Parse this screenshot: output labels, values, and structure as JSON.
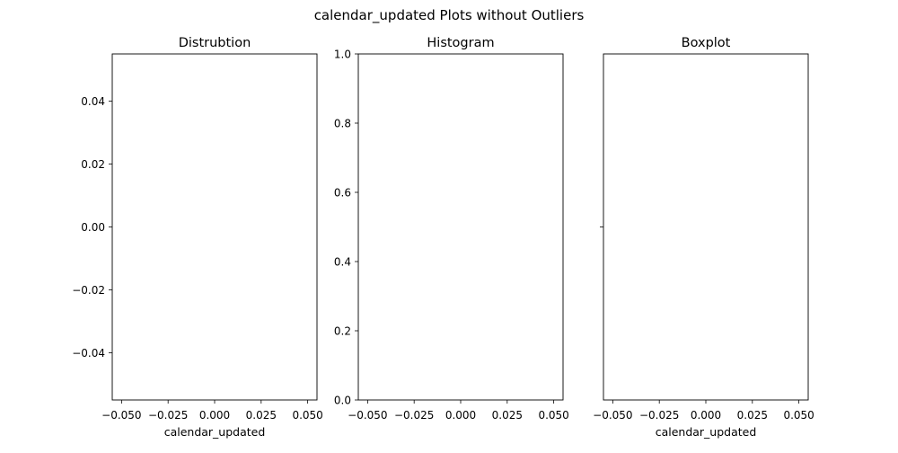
{
  "suptitle": "calendar_updated Plots without Outliers",
  "chart_data": [
    {
      "type": "line",
      "title": "Distrubtion",
      "xlabel": "calendar_updated",
      "ylabel": "",
      "xlim": [
        -0.055,
        0.055
      ],
      "ylim": [
        -0.055,
        0.055
      ],
      "xticks": [
        -0.05,
        -0.025,
        0.0,
        0.025,
        0.05
      ],
      "xtick_labels": [
        "−0.050",
        "−0.025",
        "0.000",
        "0.025",
        "0.050"
      ],
      "yticks": [
        0.04,
        0.02,
        0.0,
        -0.02,
        -0.04
      ],
      "ytick_labels": [
        "0.04",
        "0.02",
        "0.00",
        "−0.02",
        "−0.04"
      ],
      "series": [],
      "grid": false
    },
    {
      "type": "bar",
      "title": "Histogram",
      "xlabel": "",
      "ylabel": "",
      "xlim": [
        -0.055,
        0.055
      ],
      "ylim": [
        0,
        1
      ],
      "xticks": [
        -0.05,
        -0.025,
        0.0,
        0.025,
        0.05
      ],
      "xtick_labels": [
        "−0.050",
        "−0.025",
        "0.000",
        "0.025",
        "0.050"
      ],
      "yticks": [
        1.0,
        0.8,
        0.6,
        0.4,
        0.2,
        0.0
      ],
      "ytick_labels": [
        "1.0",
        "0.8",
        "0.6",
        "0.4",
        "0.2",
        "0.0"
      ],
      "values": [],
      "grid": false
    },
    {
      "type": "box",
      "title": "Boxplot",
      "xlabel": "calendar_updated",
      "ylabel": "",
      "xlim": [
        -0.055,
        0.055
      ],
      "xticks": [
        -0.05,
        -0.025,
        0.0,
        0.025,
        0.05
      ],
      "xtick_labels": [
        "−0.050",
        "−0.025",
        "0.000",
        "0.025",
        "0.050"
      ],
      "yticks": [
        0
      ],
      "ytick_labels": [
        ""
      ],
      "values": [],
      "grid": false
    }
  ]
}
